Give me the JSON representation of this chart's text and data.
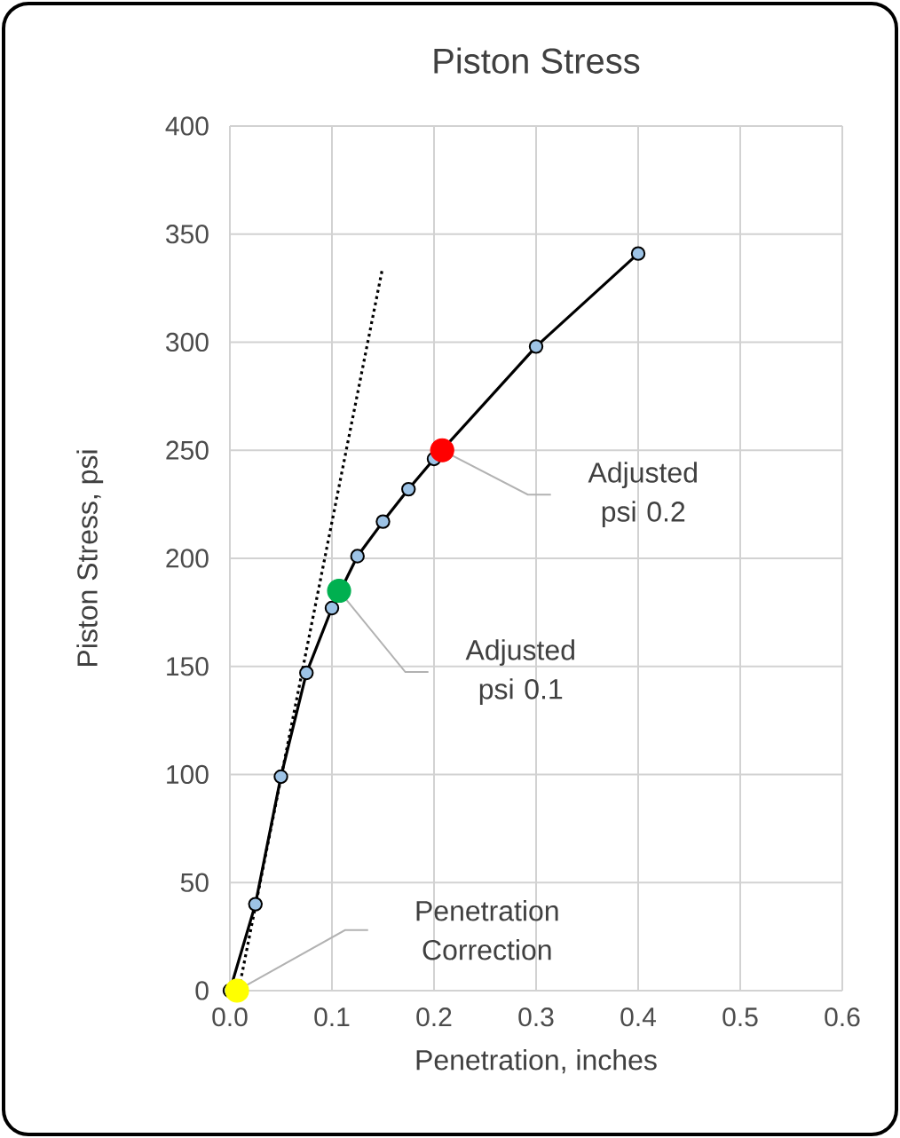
{
  "chart_data": {
    "type": "line",
    "title": "Piston Stress",
    "xlabel": "Penetration, inches",
    "ylabel": "Piston Stress, psi",
    "xlim": [
      0,
      0.6
    ],
    "xticks": [
      {
        "value": 0,
        "label": "0.0"
      },
      {
        "value": 0.1,
        "label": "0.1"
      },
      {
        "value": 0.2,
        "label": "0.2"
      },
      {
        "value": 0.3,
        "label": "0.3"
      },
      {
        "value": 0.4,
        "label": "0.4"
      },
      {
        "value": 0.5,
        "label": "0.5"
      },
      {
        "value": 0.6,
        "label": "0.6"
      }
    ],
    "ylim": [
      0,
      400
    ],
    "yticks": [
      0,
      50,
      100,
      150,
      200,
      250,
      300,
      350,
      400
    ],
    "grid": true,
    "series": [
      {
        "type": "line",
        "color": "#000000",
        "marker": "circle",
        "line_style": "solid",
        "x": [
          0,
          0.025,
          0.05,
          0.075,
          0.1,
          0.125,
          0.15,
          0.175,
          0.2,
          0.3,
          0.4
        ],
        "values": [
          0,
          40,
          99,
          147,
          177,
          201,
          217,
          232,
          246,
          298,
          341
        ]
      },
      {
        "type": "line",
        "color": "#000000",
        "marker": "none",
        "line_style": "dotted",
        "x": [
          0.009,
          0.149
        ],
        "values": [
          1,
          333
        ]
      },
      {
        "type": "scatter",
        "color": "#ffff00",
        "marker": "circle",
        "x": [
          0.007
        ],
        "values": [
          0
        ]
      },
      {
        "type": "scatter",
        "color": "#00b050",
        "marker": "circle",
        "x": [
          0.107
        ],
        "values": [
          185
        ]
      },
      {
        "type": "scatter",
        "color": "#ff0000",
        "marker": "circle",
        "x": [
          0.208
        ],
        "values": [
          250
        ]
      }
    ],
    "annotations": [
      "Penetration Correction",
      "Adjusted psi 0.1",
      "Adjusted psi 0.2"
    ]
  }
}
